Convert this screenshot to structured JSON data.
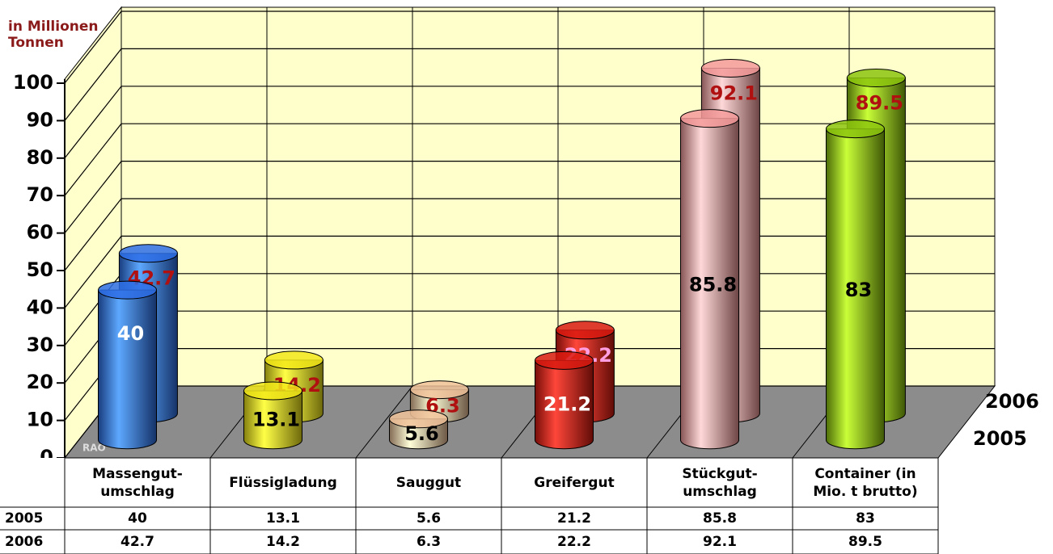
{
  "chart_data": {
    "type": "bar3d",
    "ylabel": "in Millionen\nTonnen",
    "watermark": "RAO",
    "categories": [
      "Massengut-\numschlag",
      "Flüssigladung",
      "Sauggut",
      "Greifergut",
      "Stückgut-\numschlag",
      "Container (in\nMio. t brutto)"
    ],
    "colors": [
      "#2e6fe6",
      "#f2e81a",
      "#f0c29a",
      "#d81a10",
      "#f59a9a",
      "#8cc40e"
    ],
    "series": [
      {
        "name": "2005",
        "values": [
          40,
          13.1,
          5.6,
          21.2,
          85.8,
          83
        ],
        "label_colors": [
          "#ffffff",
          "#000000",
          "#000000",
          "#ffffff",
          "#000000",
          "#000000"
        ]
      },
      {
        "name": "2006",
        "values": [
          42.7,
          14.2,
          6.3,
          22.2,
          92.1,
          89.5
        ],
        "label_colors": [
          "#b01010",
          "#b01010",
          "#b01010",
          "#ff9ee0",
          "#b01010",
          "#b01010"
        ]
      }
    ],
    "ylim": [
      0,
      100
    ],
    "yticks": [
      0,
      10,
      20,
      30,
      40,
      50,
      60,
      70,
      80,
      90,
      100
    ],
    "grid": true,
    "wall_color": "#ffffcc",
    "floor_color": "#8c8c8c"
  }
}
